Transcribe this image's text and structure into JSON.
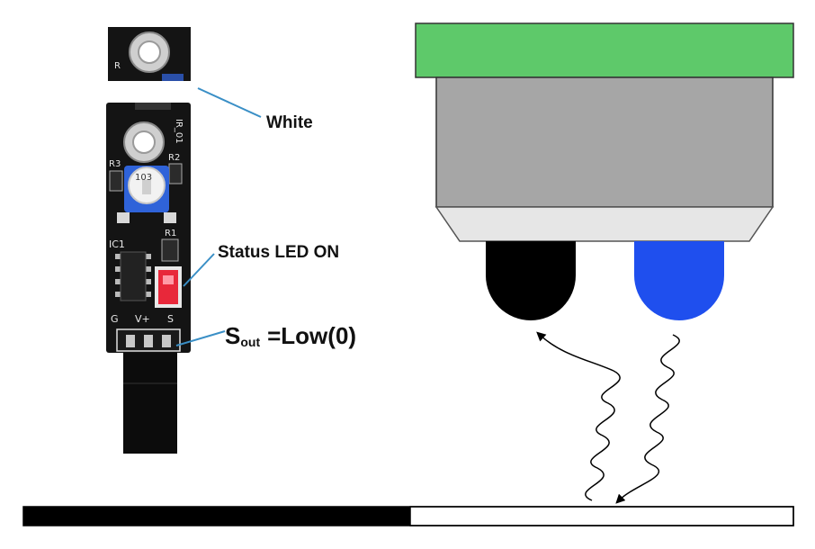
{
  "labels": {
    "white": "White",
    "status_led": "Status LED  ON",
    "s_out_main": "S",
    "s_out_sub": "out",
    "s_out_value": "=Low(0)"
  },
  "pcb": {
    "pin_g": "G",
    "pin_v": "V+",
    "pin_s": "S",
    "r_label": "R",
    "r1": "R1",
    "r2": "R2",
    "r3": "R3",
    "ic1": "IC1",
    "board_id": "IR_01",
    "pot_code": "103"
  },
  "colors": {
    "callout_line": "#3a8fc6",
    "housing_top": "#5ec96a",
    "housing_body": "#a6a6a6",
    "housing_base": "#e6e6e6",
    "receiver": "#000000",
    "emitter": "#1f4fee",
    "surface_black": "#000000",
    "surface_white": "#ffffff",
    "pcb": "#111111",
    "status_led": "#e8283a"
  },
  "icons": {
    "incident_ray": "wavy-arrow-down-icon",
    "reflected_ray": "wavy-arrow-up-icon"
  }
}
